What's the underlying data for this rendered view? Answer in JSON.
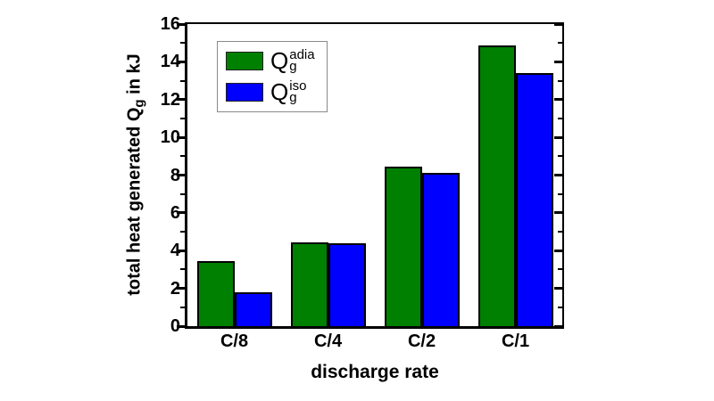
{
  "figure": {
    "background": "#ffffff",
    "text_color": "#000000"
  },
  "chart_data": {
    "type": "bar",
    "title": "",
    "xlabel": "discharge rate",
    "ylabel_prefix": "total heat generated Q",
    "ylabel_sub": "g",
    "ylabel_suffix": " in kJ",
    "categories": [
      "C/8",
      "C/4",
      "C/2",
      "C/1"
    ],
    "series": [
      {
        "name": "Qg_adia",
        "label_base": "Q",
        "label_sup": "adia",
        "label_sub": "g",
        "color": "#008000",
        "values": [
          3.45,
          4.45,
          8.45,
          14.85
        ]
      },
      {
        "name": "Qg_iso",
        "label_base": "Q",
        "label_sup": "iso",
        "label_sub": "g",
        "color": "#0000ff",
        "values": [
          1.8,
          4.4,
          8.1,
          13.4
        ]
      }
    ],
    "ylim": [
      0,
      16
    ],
    "ytick_labels": [
      "0",
      "2",
      "4",
      "6",
      "8",
      "10",
      "12",
      "14",
      "16"
    ],
    "ytick_major_step": 2,
    "ytick_minor_step": 1,
    "bar_edge_color": "#000000",
    "grid": false,
    "legend_position": "top-left"
  }
}
